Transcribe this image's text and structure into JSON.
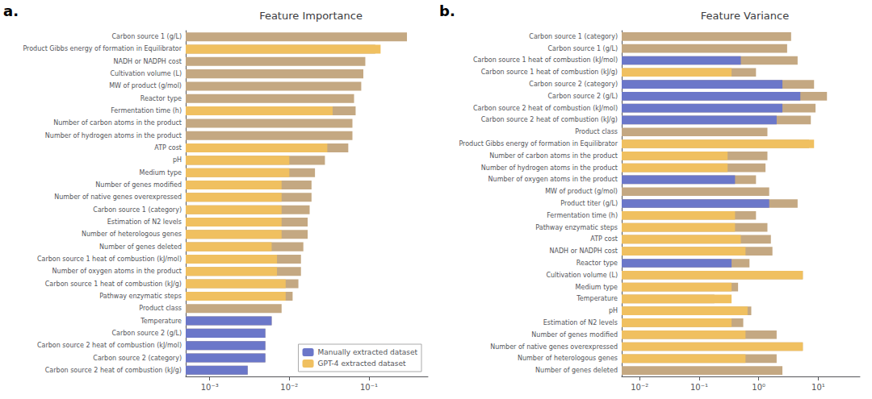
{
  "chart_data": [
    {
      "type": "bar",
      "orientation": "horizontal",
      "title": "Feature Importance",
      "annotations": [
        "a."
      ],
      "categories": [
        "Carbon source 1 (g/L)",
        "Product Gibbs energy of formation in Equilibrator",
        "NADH or NADPH cost",
        "Cultivation volume (L)",
        "MW of product (g/mol)",
        "Reactor type",
        "Fermentation time (h)",
        "Number of carbon atoms in the product",
        "Number of hydrogen atoms in the product",
        "ATP cost",
        "pH",
        "Medium type",
        "Number of genes modified",
        "Number of native genes overexpressed",
        "Carbon source 1 (category)",
        "Estimation of N2 levels",
        "Number of heterologous genes",
        "Number of genes deleted",
        "Carbon source 1 heat of combustion (kJ/mol)",
        "Number of oxygen atoms in the product",
        "Carbon source 1 heat of combustion (kJ/g)",
        "Pathway enzymatic steps",
        "Product class",
        "Temperature",
        "Carbon source 2 (g/L)",
        "Carbon source 2 heat of combustion (kJ/mol)",
        "Carbon source 2 (category)",
        "Carbon source 2 heat of combustion (kJ/g)"
      ],
      "series": [
        {
          "color": "#C4A882",
          "values": [
            0.3,
            0.12,
            0.09,
            0.085,
            0.08,
            0.065,
            0.068,
            0.062,
            0.062,
            0.055,
            0.028,
            0.021,
            0.019,
            0.019,
            0.018,
            0.017,
            0.017,
            0.015,
            0.014,
            0.014,
            0.013,
            0.011,
            0.008,
            0.006,
            0.005,
            0.005,
            0.005,
            0.003
          ]
        },
        {
          "name": "Manually extracted dataset",
          "color": "#6B77C9",
          "values": [
            null,
            null,
            null,
            null,
            null,
            null,
            null,
            null,
            null,
            null,
            null,
            null,
            null,
            null,
            null,
            null,
            null,
            null,
            null,
            null,
            null,
            null,
            null,
            0.006,
            0.005,
            0.005,
            0.005,
            0.003
          ]
        },
        {
          "name": "GPT-4 extracted dataset",
          "color": "#F0C060",
          "values": [
            null,
            0.14,
            null,
            null,
            null,
            null,
            0.035,
            null,
            null,
            0.03,
            0.01,
            0.01,
            0.008,
            0.008,
            0.008,
            0.008,
            0.008,
            0.006,
            0.007,
            0.007,
            0.009,
            0.009,
            null,
            null,
            null,
            null,
            null,
            null
          ]
        }
      ],
      "log": "x",
      "xlim": [
        0.0005,
        0.55
      ],
      "xticks": [
        {
          "value": 0.001,
          "label": "10⁻³"
        },
        {
          "value": 0.01,
          "label": "10⁻²"
        },
        {
          "value": 0.1,
          "label": "10⁻¹"
        }
      ],
      "grid": false,
      "legend": "lower right"
    },
    {
      "type": "bar",
      "orientation": "horizontal",
      "title": "Feature Variance",
      "annotations": [
        "b."
      ],
      "categories": [
        "Carbon source 1 (category)",
        "Carbon source 1 (g/L)",
        "Carbon source 1 heat of combustion (kJ/mol)",
        "Carbon source 1 heat of combustion (kJ/g)",
        "Carbon source 2 (category)",
        "Carbon source 2 (g/L)",
        "Carbon source 2 heat of combustion (kJ/mol)",
        "Carbon source 2 heat of combustion (kJ/g)",
        "Product class",
        "Product Gibbs energy of formation in Equilibrator",
        "Number of carbon atoms in the product",
        "Number of hydrogen atoms in the product",
        "Number of oxygen atoms in the product",
        "MW of product (g/mol)",
        "Product titer (g/L)",
        "Fermentation time (h)",
        "Pathway enzymatic steps",
        "ATP cost",
        "NADH or NADPH cost",
        "Reactor type",
        "Cultivation volume (L)",
        "Medium type",
        "Temperature",
        "pH",
        "Estimation of N2 levels",
        "Number of genes modified",
        "Number of native genes overexpressed",
        "Number of heterologous genes",
        "Number of genes deleted"
      ],
      "series": [
        {
          "color": "#C4A882",
          "values": [
            3.5,
            3.0,
            4.5,
            0.9,
            8.5,
            14.0,
            9.0,
            7.5,
            1.4,
            7.0,
            1.4,
            1.3,
            0.9,
            1.5,
            4.5,
            0.9,
            1.4,
            1.6,
            1.7,
            0.7,
            5.5,
            0.45,
            0.18,
            0.75,
            0.55,
            2.0,
            5.5,
            2.0,
            2.5
          ]
        },
        {
          "name": "Manually extracted dataset",
          "color": "#6B77C9",
          "values": [
            null,
            null,
            0.5,
            null,
            2.5,
            5.0,
            2.5,
            2.0,
            null,
            null,
            null,
            null,
            0.4,
            null,
            1.5,
            null,
            null,
            null,
            null,
            0.35,
            null,
            null,
            null,
            null,
            null,
            null,
            null,
            null,
            null
          ]
        },
        {
          "name": "GPT-4 extracted dataset",
          "color": "#F0C060",
          "values": [
            null,
            null,
            null,
            0.35,
            null,
            null,
            null,
            null,
            null,
            8.5,
            0.3,
            0.3,
            null,
            null,
            null,
            0.4,
            0.4,
            0.5,
            0.6,
            null,
            5.5,
            0.35,
            0.35,
            0.65,
            0.35,
            0.6,
            5.5,
            0.6,
            null
          ]
        }
      ],
      "log": "x",
      "xlim": [
        0.005,
        50
      ],
      "xticks": [
        {
          "value": 0.01,
          "label": "10⁻²"
        },
        {
          "value": 0.1,
          "label": "10⁻¹"
        },
        {
          "value": 1,
          "label": "10⁰"
        },
        {
          "value": 10,
          "label": "10¹"
        }
      ],
      "grid": false
    }
  ]
}
